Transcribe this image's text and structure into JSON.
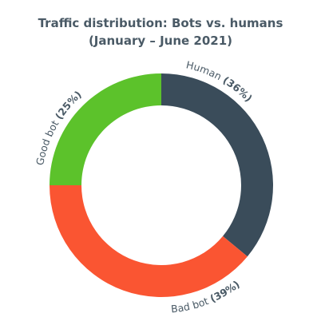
{
  "chart_data": {
    "type": "pie",
    "variant": "donut",
    "title": "Traffic distribution: Bots vs. humans",
    "subtitle": "(January – June 2021)",
    "slices": [
      {
        "name": "Human",
        "value": 36,
        "display": "36%",
        "color": "#3a4c5a"
      },
      {
        "name": "Bad bot",
        "value": 39,
        "display": "39%",
        "color": "#fa5532"
      },
      {
        "name": "Good bot",
        "value": 25,
        "display": "25%",
        "color": "#5cc22b"
      }
    ],
    "legend": "none",
    "labels": "curved along outer edge"
  }
}
